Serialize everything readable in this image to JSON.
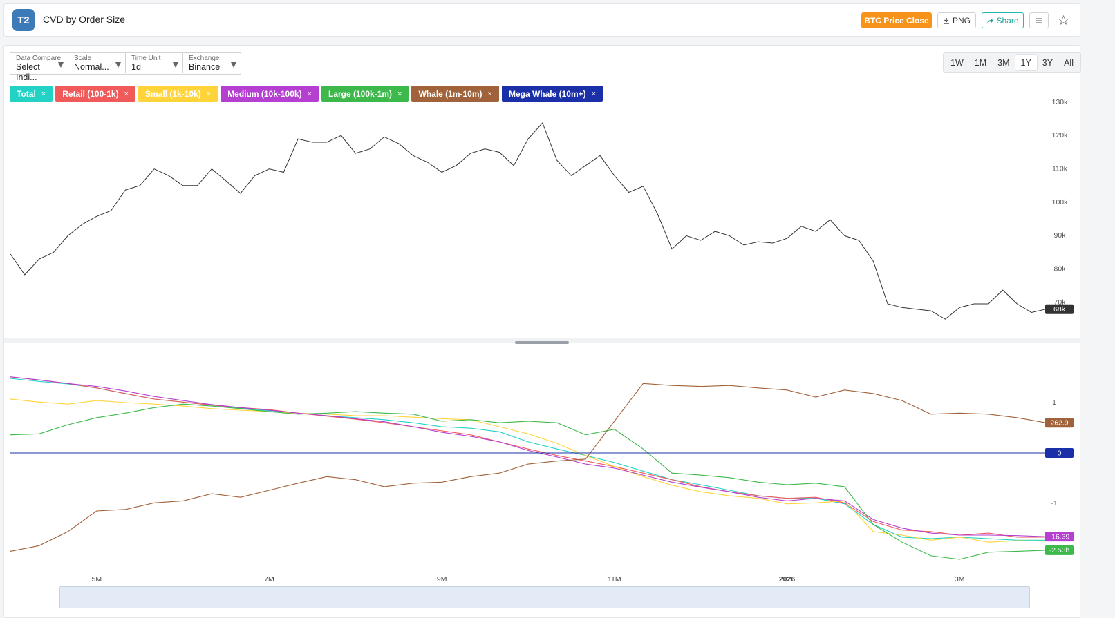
{
  "header": {
    "logo": "T2",
    "title": "CVD by Order Size",
    "buttons": [
      "BTC Price Close",
      "PNG",
      "Share"
    ]
  },
  "controls": [
    {
      "label": "Data Compare",
      "value": "Select Indi..."
    },
    {
      "label": "Scale",
      "value": "Normal..."
    },
    {
      "label": "Time Unit",
      "value": "1d"
    },
    {
      "label": "Exchange",
      "value": "Binance"
    }
  ],
  "ranges": [
    "1W",
    "1M",
    "3M",
    "1Y",
    "3Y",
    "All"
  ],
  "active_range": "1Y",
  "close_glyph": "×",
  "chart_data": [
    {
      "type": "line",
      "color": "#333333",
      "end_label": "68k",
      "categories": [
        null,
        null,
        null,
        null,
        null,
        null,
        null,
        null,
        null,
        null,
        null,
        null,
        null,
        null,
        null,
        null,
        null,
        null,
        null,
        null,
        null,
        null,
        null,
        null,
        null,
        null,
        null,
        null,
        null,
        null,
        null,
        null,
        null,
        null,
        null,
        null,
        null,
        null,
        null,
        null,
        null,
        null,
        null,
        null,
        null,
        null,
        null,
        null,
        null,
        null,
        null,
        null,
        null,
        null,
        null,
        null,
        null,
        null,
        null,
        null,
        null,
        null,
        null,
        null,
        null,
        null,
        null,
        null,
        null,
        null,
        null,
        null,
        null
      ],
      "values": [
        84500,
        78300,
        83000,
        85000,
        90000,
        93400,
        95800,
        97500,
        103700,
        105000,
        110000,
        108000,
        105000,
        105000,
        110000,
        106400,
        102700,
        108000,
        110000,
        109000,
        119000,
        118000,
        118000,
        120000,
        114700,
        116000,
        119600,
        117600,
        114000,
        112000,
        109000,
        111000,
        114700,
        116000,
        115000,
        111000,
        119000,
        123800,
        112600,
        108000,
        111000,
        114000,
        108000,
        103000,
        104800,
        96500,
        86000,
        90000,
        88600,
        91300,
        90000,
        87200,
        88200,
        87800,
        89200,
        92800,
        91300,
        94800,
        90000,
        88600,
        82400,
        69600,
        68500,
        68000,
        67500,
        65000,
        68500,
        69600,
        69600,
        73700,
        69600,
        67000,
        68000
      ],
      "ylim": [
        59000,
        131500
      ],
      "yticks": [
        {
          "value": 70000,
          "label": "70k"
        },
        {
          "value": 80000,
          "label": "80k"
        },
        {
          "value": 90000,
          "label": "90k"
        },
        {
          "value": 100000,
          "label": "100k"
        },
        {
          "value": 110000,
          "label": "110k"
        },
        {
          "value": 120000,
          "label": "120k"
        },
        {
          "value": 130000,
          "label": "130k"
        }
      ]
    },
    {
      "type": "line",
      "categories": [
        null,
        null,
        null,
        "5M",
        null,
        null,
        null,
        null,
        null,
        "7M",
        null,
        null,
        null,
        null,
        null,
        "9M",
        null,
        null,
        null,
        null,
        null,
        "11M",
        null,
        null,
        null,
        null,
        null,
        "2026",
        null,
        null,
        null,
        null,
        null,
        "3M",
        null,
        null,
        null
      ],
      "ylim": [
        -2.4,
        1.6
      ],
      "yticks": [
        -1,
        1
      ],
      "series": [
        {
          "name": "Total",
          "color": "#22d3c5",
          "values": [
            1.48,
            1.42,
            1.37,
            1.29,
            1.18,
            1.07,
            1.01,
            0.95,
            0.89,
            0.84,
            0.79,
            0.74,
            0.7,
            0.66,
            0.6,
            0.52,
            0.49,
            0.42,
            0.22,
            0.08,
            -0.05,
            -0.19,
            -0.36,
            -0.53,
            -0.63,
            -0.74,
            -0.85,
            -0.9,
            -0.9,
            -1.01,
            -1.42,
            -1.67,
            -1.7,
            -1.67,
            -1.7,
            -1.73,
            -1.73
          ]
        },
        {
          "name": "Retail (100-1k)",
          "color": "#f05a5a",
          "values": [
            1.51,
            1.45,
            1.38,
            1.29,
            1.18,
            1.07,
            1.01,
            0.95,
            0.9,
            0.86,
            0.79,
            0.73,
            0.67,
            0.6,
            0.52,
            0.44,
            0.36,
            0.22,
            0.08,
            -0.05,
            -0.16,
            -0.27,
            -0.4,
            -0.53,
            -0.67,
            -0.77,
            -0.85,
            -0.9,
            -0.88,
            -0.99,
            -1.36,
            -1.53,
            -1.56,
            -1.63,
            -1.59,
            -1.67,
            -1.67
          ]
        },
        {
          "name": "Small (1k-10k)",
          "color": "#ffd43b",
          "values": [
            1.07,
            1.01,
            0.97,
            1.04,
            1.0,
            0.97,
            0.93,
            0.88,
            0.85,
            0.82,
            0.79,
            0.77,
            0.74,
            0.74,
            0.71,
            0.68,
            0.66,
            0.52,
            0.38,
            0.19,
            -0.05,
            -0.27,
            -0.47,
            -0.64,
            -0.77,
            -0.85,
            -0.9,
            -1.01,
            -0.99,
            -0.95,
            -1.56,
            -1.63,
            -1.73,
            -1.67,
            -1.77,
            -1.74,
            -1.75
          ]
        },
        {
          "name": "Medium (10k-100k)",
          "color": "#b43fd0",
          "end_label": "-16.39",
          "values": [
            1.51,
            1.45,
            1.38,
            1.32,
            1.23,
            1.12,
            1.04,
            0.96,
            0.9,
            0.85,
            0.79,
            0.74,
            0.68,
            0.62,
            0.52,
            0.41,
            0.33,
            0.22,
            0.05,
            -0.08,
            -0.22,
            -0.3,
            -0.44,
            -0.58,
            -0.68,
            -0.77,
            -0.88,
            -0.95,
            -0.9,
            -0.95,
            -1.32,
            -1.49,
            -1.59,
            -1.63,
            -1.63,
            -1.64,
            -1.66
          ]
        },
        {
          "name": "Large (100k-1m)",
          "color": "#3cb94a",
          "end_label": "-2.53b",
          "values": [
            0.36,
            0.38,
            0.56,
            0.7,
            0.79,
            0.9,
            0.97,
            0.93,
            0.88,
            0.82,
            0.77,
            0.79,
            0.82,
            0.79,
            0.77,
            0.63,
            0.66,
            0.6,
            0.63,
            0.6,
            0.36,
            0.47,
            0.08,
            -0.4,
            -0.44,
            -0.49,
            -0.58,
            -0.63,
            -0.6,
            -0.67,
            -1.42,
            -1.77,
            -2.04,
            -2.11,
            -1.97,
            -1.95,
            -1.93
          ]
        },
        {
          "name": "Whale (1m-10m)",
          "color": "#a0623a",
          "end_label": "262.9",
          "values": [
            -1.95,
            -1.84,
            -1.56,
            -1.15,
            -1.12,
            -0.99,
            -0.95,
            -0.81,
            -0.88,
            -0.74,
            -0.6,
            -0.47,
            -0.53,
            -0.67,
            -0.6,
            -0.58,
            -0.47,
            -0.4,
            -0.22,
            -0.16,
            -0.12,
            0.63,
            1.38,
            1.34,
            1.32,
            1.34,
            1.29,
            1.25,
            1.11,
            1.25,
            1.18,
            1.04,
            0.77,
            0.79,
            0.77,
            0.7,
            0.6
          ]
        },
        {
          "name": "Mega Whale (10m+)",
          "color": "#1a2fa8",
          "end_label": "0",
          "values": [
            0,
            0,
            0,
            0,
            0,
            0,
            0,
            0,
            0,
            0,
            0,
            0,
            0,
            0,
            0,
            0,
            0,
            0,
            0,
            0,
            0,
            0,
            0,
            0,
            0,
            0,
            0,
            0,
            0,
            0,
            0,
            0,
            0,
            0,
            0,
            0,
            0
          ]
        }
      ]
    }
  ]
}
